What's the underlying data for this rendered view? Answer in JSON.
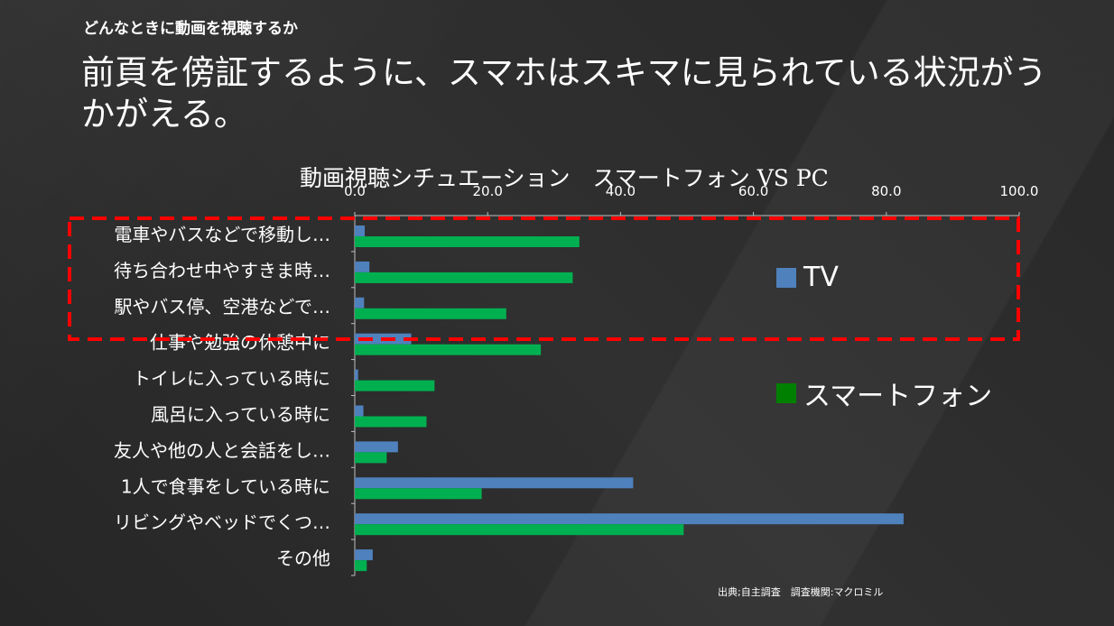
{
  "slide": {
    "subtitle": "どんなときに動画を視聴するか",
    "headline": "前頁を傍証するように、スマホはスキマに見られている状況がうかがえる。",
    "source": "出典;自主調査　調査機関:マクロミル"
  },
  "colors": {
    "tv": "#4f81bd",
    "smartphone": "#00b050",
    "legend_smartphone": "#008000",
    "highlight_box": "#ff0000"
  },
  "chart_data": {
    "type": "bar",
    "orientation": "horizontal",
    "title": "動画視聴シチュエーション　スマートフォン VS PC",
    "categories": [
      "電車やバスなどで移動し…",
      "待ち合わせ中やすきま時…",
      "駅やバス停、空港などで…",
      "仕事や勉強の休憩中に",
      "トイレに入っている時に",
      "風呂に入っている時に",
      "友人や他の人と会話をし…",
      "1人で食事をしている時に",
      "リビングやベッドでくつ…",
      "その他"
    ],
    "series": [
      {
        "name": "TV",
        "values": [
          1.5,
          2.2,
          1.4,
          8.5,
          0.5,
          1.3,
          6.5,
          41.9,
          82.6,
          2.7
        ]
      },
      {
        "name": "スマートフォン",
        "values": [
          33.8,
          32.8,
          22.8,
          28.0,
          12.0,
          10.8,
          4.8,
          19.1,
          49.5,
          1.8
        ]
      }
    ],
    "xlim": [
      0,
      100
    ],
    "xticks": [
      "0.0",
      "20.0",
      "40.0",
      "60.0",
      "80.0",
      "100.0"
    ],
    "axis_position": "top",
    "legend_position": "right",
    "highlight": "first three categories"
  }
}
